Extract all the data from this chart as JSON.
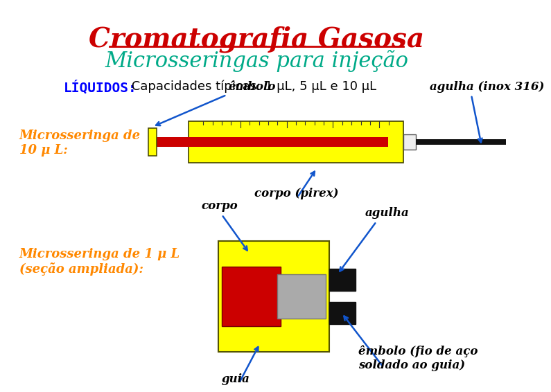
{
  "title": "Cromatografia Gasosa",
  "subtitle": "Microsseringas para injeção",
  "liquidos_label": "LÍQUIDOS:",
  "liquidos_text": " Capacidades típicas: 1 μL, 5 μL e 10 μL",
  "label_microsseringa10": "Microsseringa de\n10 μ L:",
  "label_microsseringa1": "Microsseringa de 1 μ L\n(seção ampliada):",
  "label_embolo": "êmbolo",
  "label_agulha": "agulha (inox 316)",
  "label_corpo_pirex": "corpo (pirex)",
  "label_corpo2": "corpo",
  "label_agulha2": "agulha",
  "label_guia": "guia",
  "label_embolo2": "êmbolo (fio de aço\nsoldado ao guia)",
  "bg_color": "#ffffff",
  "title_color": "#cc0000",
  "subtitle_color": "#00aa88",
  "liquidos_color": "#0000ff",
  "body_text_color": "#000000",
  "label_micro_color": "#ff8800",
  "arrow_color": "#1155cc",
  "yellow": "#ffff00",
  "red": "#cc0000",
  "black": "#111111",
  "gray": "#aaaaaa"
}
